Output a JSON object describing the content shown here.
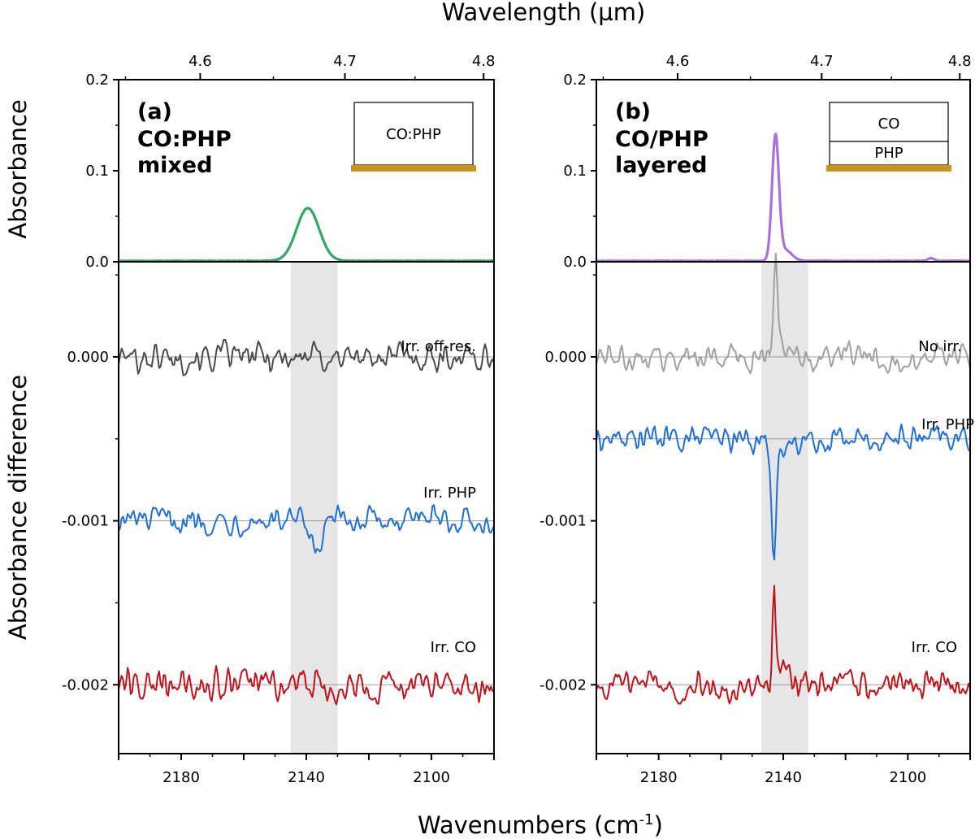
{
  "figure": {
    "top_axis_label": "Wavelength (µm)",
    "bottom_axis_label": "Wavenumbers (cm",
    "bottom_axis_label_sup": "-1",
    "bottom_axis_label_end": ")",
    "ylabel_top": "Absorbance",
    "ylabel_bottom": "Absorbance difference"
  },
  "panels": [
    {
      "id": "a",
      "panel_letter": "(a)",
      "title_line1": "CO:PHP",
      "title_line2": "mixed",
      "inset_labels": [
        "CO:PHP"
      ],
      "substrate_color": "#c8951b"
    },
    {
      "id": "b",
      "panel_letter": "(b)",
      "title_line1": "CO/PHP",
      "title_line2": "layered",
      "inset_labels": [
        "CO",
        "PHP"
      ],
      "substrate_color": "#c8951b"
    }
  ],
  "chart_data": [
    {
      "panel": "a",
      "type": "line",
      "subplot": "absorbance",
      "xlabel": "Wavenumbers (cm-1)",
      "ylabel": "Absorbance",
      "xlim": [
        2200,
        2080
      ],
      "ylim": [
        0,
        0.2
      ],
      "yticks": [
        "0.0",
        "0.1",
        "0.2"
      ],
      "top_xlabel": "Wavelength (µm)",
      "top_xticks": [
        "4.6",
        "4.7",
        "4.8"
      ],
      "series": [
        {
          "name": "CO:PHP mixed",
          "color": "#35a663",
          "peak_center": 2139.5,
          "peak_height": 0.058,
          "peak_width": 3.6,
          "baseline": 0.001
        }
      ]
    },
    {
      "panel": "a",
      "type": "line",
      "subplot": "absorbance_difference",
      "xlabel": "Wavenumbers (cm-1)",
      "ylabel": "Absorbance difference",
      "xlim": [
        2200,
        2080
      ],
      "ylim": [
        -0.00242,
        0.00058
      ],
      "yticks": [
        "0.000",
        "-0.001",
        "-0.002"
      ],
      "xticks": [
        "2180",
        "2140",
        "2100"
      ],
      "highlight_band": [
        2145,
        2130
      ],
      "series": [
        {
          "name": "Irr. off-res.",
          "color": "#4a4a4a",
          "offset": 0.0,
          "noise": 8e-05,
          "features": []
        },
        {
          "name": "Irr. PHP",
          "color": "#1f6fd6",
          "offset": -0.001,
          "noise": 7e-05,
          "features": [
            {
              "x": 2137,
              "amp": -0.0002,
              "w": 2
            },
            {
              "x": 2099.5,
              "amp": 0.00015,
              "w": 0.8
            }
          ]
        },
        {
          "name": "Irr. CO",
          "color": "#c0121a",
          "offset": -0.002,
          "noise": 9e-05,
          "features": []
        }
      ]
    },
    {
      "panel": "b",
      "type": "line",
      "subplot": "absorbance",
      "xlabel": "Wavenumbers (cm-1)",
      "ylabel": "Absorbance",
      "xlim": [
        2200,
        2080
      ],
      "ylim": [
        0,
        0.2
      ],
      "yticks": [
        "0.0",
        "0.1",
        "0.2"
      ],
      "top_xlabel": "Wavelength (µm)",
      "top_xticks": [
        "4.6",
        "4.7",
        "4.8"
      ],
      "series": [
        {
          "name": "CO/PHP layered",
          "color": "#a872d8",
          "peak_center": 2142.5,
          "peak_height": 0.135,
          "peak_width": 1.1,
          "baseline": 0.001,
          "shoulder": {
            "x": 2139.5,
            "amp": 0.012,
            "w": 2.2
          },
          "small_peak": {
            "x": 2092.5,
            "amp": 0.003,
            "w": 1
          }
        }
      ]
    },
    {
      "panel": "b",
      "type": "line",
      "subplot": "absorbance_difference",
      "xlabel": "Wavenumbers (cm-1)",
      "ylabel": "Absorbance difference",
      "xlim": [
        2200,
        2080
      ],
      "ylim": [
        -0.00242,
        0.00058
      ],
      "yticks": [
        "0.000",
        "-0.001",
        "-0.002"
      ],
      "xticks": [
        "2180",
        "2140",
        "2100"
      ],
      "highlight_band": [
        2147,
        2132
      ],
      "series": [
        {
          "name": "No irr.",
          "color": "#a0a0a0",
          "offset": 0.0,
          "noise": 7e-05,
          "features": [
            {
              "x": 2142.5,
              "amp": 0.00055,
              "w": 0.6
            },
            {
              "x": 2140.5,
              "amp": 0.00013,
              "w": 1.3
            }
          ]
        },
        {
          "name": "Irr. PHP",
          "color": "#1f6fd6",
          "offset": -0.0005,
          "noise": 7e-05,
          "features": [
            {
              "x": 2143,
              "amp": -0.00065,
              "w": 0.7
            },
            {
              "x": 2141,
              "amp": -0.00015,
              "w": 1.5
            }
          ]
        },
        {
          "name": "Irr. CO",
          "color": "#c0121a",
          "offset": -0.002,
          "noise": 8e-05,
          "features": [
            {
              "x": 2143,
              "amp": 0.00055,
              "w": 0.45
            },
            {
              "x": 2140.5,
              "amp": 0.00012,
              "w": 1.2
            }
          ]
        }
      ]
    }
  ]
}
